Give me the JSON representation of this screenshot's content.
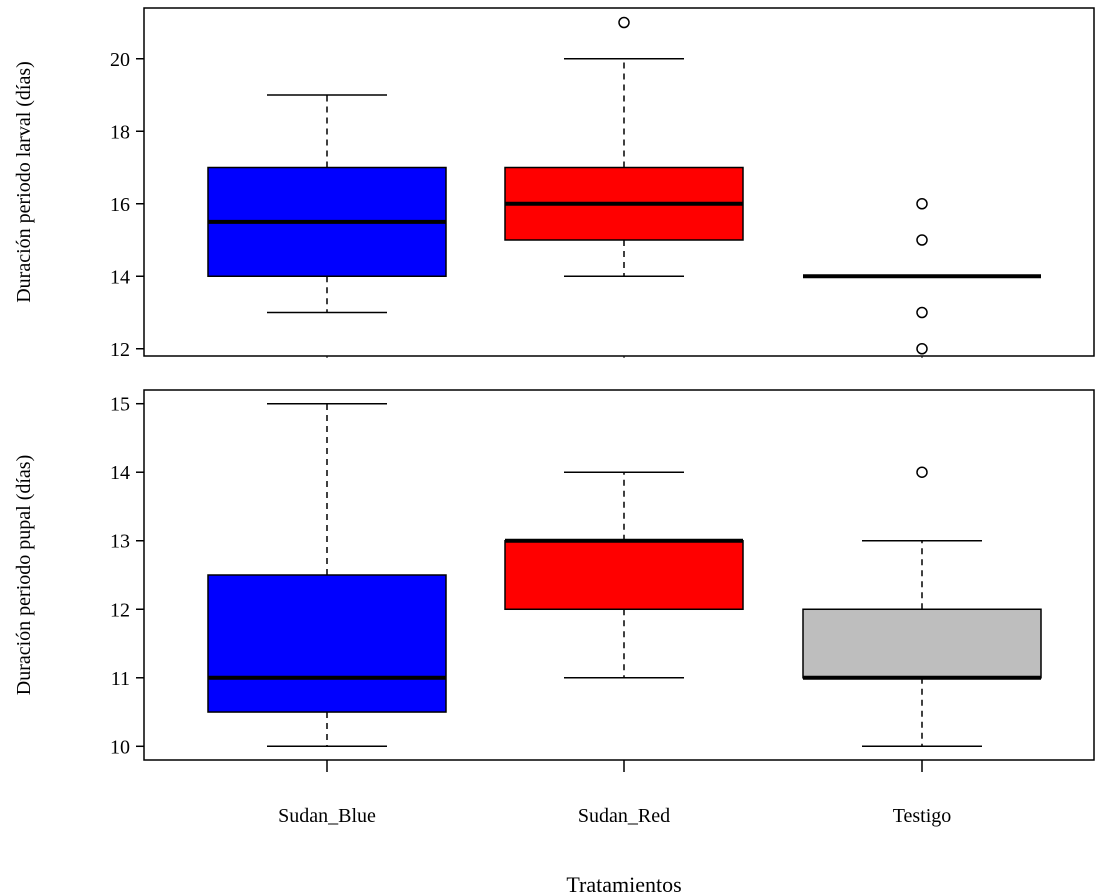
{
  "chart_data": {
    "type": "box",
    "categories": [
      "Sudan_Blue",
      "Sudan_Red",
      "Testigo"
    ],
    "xlabel": "Tratamientos",
    "panels": [
      {
        "ylabel": "Duración periodo larval (días)",
        "ylim": [
          11.8,
          21.4
        ],
        "yticks": [
          12,
          14,
          16,
          18,
          20
        ],
        "boxes": [
          {
            "category": "Sudan_Blue",
            "color": "#0000ff",
            "whisker_low": 13,
            "q1": 14,
            "median": 15.5,
            "q3": 17,
            "whisker_high": 19,
            "outliers": []
          },
          {
            "category": "Sudan_Red",
            "color": "#ff0000",
            "whisker_low": 14,
            "q1": 15,
            "median": 16,
            "q3": 17,
            "whisker_high": 20,
            "outliers": [
              21
            ]
          },
          {
            "category": "Testigo",
            "color": "#bebebe",
            "whisker_low": 14,
            "q1": 14,
            "median": 14,
            "q3": 14,
            "whisker_high": 14,
            "outliers": [
              16,
              15,
              13,
              12
            ]
          }
        ]
      },
      {
        "ylabel": "Duración periodo pupal (días)",
        "ylim": [
          9.8,
          15.2
        ],
        "yticks": [
          10,
          11,
          12,
          13,
          14,
          15
        ],
        "boxes": [
          {
            "category": "Sudan_Blue",
            "color": "#0000ff",
            "whisker_low": 10,
            "q1": 10.5,
            "median": 11,
            "q3": 12.5,
            "whisker_high": 15,
            "outliers": []
          },
          {
            "category": "Sudan_Red",
            "color": "#ff0000",
            "whisker_low": 11,
            "q1": 12,
            "median": 13,
            "q3": 13,
            "whisker_high": 14,
            "outliers": []
          },
          {
            "category": "Testigo",
            "color": "#bebebe",
            "whisker_low": 10,
            "q1": 11,
            "median": 11,
            "q3": 12,
            "whisker_high": 13,
            "outliers": [
              14
            ]
          }
        ]
      }
    ]
  }
}
